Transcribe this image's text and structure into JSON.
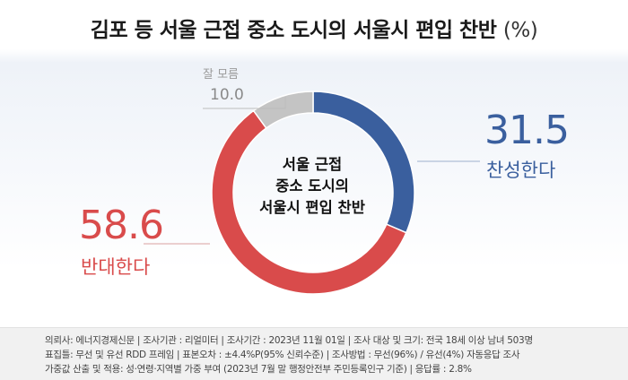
{
  "title": "김포 등 서울 근접 중소 도시의 서울시 편입 찬반",
  "title_unit": "(%)",
  "center_lines": [
    "서울 근접",
    "중소 도시의",
    "서울시 편입 찬반"
  ],
  "chart_data": {
    "type": "pie",
    "donut": true,
    "slices": [
      {
        "label": "찬성한다",
        "value": 31.5,
        "value_text": "31.5",
        "color": "#3a5f9e"
      },
      {
        "label": "반대한다",
        "value": 58.6,
        "value_text": "58.6",
        "color": "#d94b4b"
      },
      {
        "label": "잘 모름",
        "value": 10.0,
        "value_text": "10.0",
        "color": "#c4c4c4"
      }
    ]
  },
  "footer": {
    "line1": "의뢰사: 에너지경제신문  |  조사기관 : 리얼미터  |  조사기간 : 2023년 11월 01일  |  조사 대상 및 크기: 전국 18세 이상 남녀 503명",
    "line2": "표집틀: 무선 및 유선 RDD 프레임  |  표본오차 : ±4.4%P(95% 신뢰수준)  |  조사방법 : 무선(96%) / 유선(4%) 자동응답 조사",
    "line3": "가중값 산출 및 적용: 성·연령·지역별 가중 부여 (2023년 7월 말 행정안전부 주민등록인구 기준)  |  응답률 : 2.8%"
  }
}
